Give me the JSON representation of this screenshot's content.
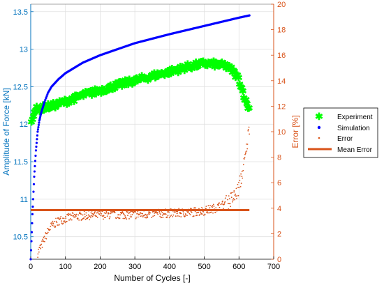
{
  "colors": {
    "left_axis": "#0072BD",
    "right_axis": "#D95319",
    "experiment": "#00FF00",
    "simulation": "#0000FF",
    "error": "#D95319",
    "mean_error": "#D95319",
    "grid": "#E0E0E0"
  },
  "chart_data": {
    "type": "scatter",
    "xlabel": "Number of Cycles [-]",
    "ylabel_left": "Amplitude of Force [kN]",
    "ylabel_right": "Error [%]",
    "xlim": [
      0,
      700
    ],
    "ylim_left": [
      10.2,
      13.6
    ],
    "ylim_right": [
      0,
      20
    ],
    "x_ticks": [
      "0",
      "100",
      "200",
      "300",
      "400",
      "500",
      "600",
      "700"
    ],
    "y_left_ticks": [
      "10.5",
      "11",
      "11.5",
      "12",
      "12.5",
      "13",
      "13.5"
    ],
    "y_right_ticks": [
      "0",
      "2",
      "4",
      "6",
      "8",
      "10",
      "12",
      "14",
      "16",
      "18",
      "20"
    ],
    "grid": true,
    "legend_position": "right",
    "legend": [
      "Experiment",
      "Simulation",
      "Error",
      "Mean Error"
    ],
    "series": [
      {
        "name": "Experiment",
        "axis": "left",
        "marker": "asterisk",
        "x": [
          0,
          10,
          20,
          30,
          40,
          60,
          80,
          100,
          130,
          160,
          200,
          250,
          300,
          350,
          400,
          450,
          480,
          500,
          530,
          560,
          580,
          600,
          610,
          620,
          630
        ],
        "y": [
          12.0,
          12.18,
          12.2,
          12.21,
          12.22,
          12.24,
          12.27,
          12.3,
          12.35,
          12.4,
          12.45,
          12.52,
          12.58,
          12.64,
          12.7,
          12.76,
          12.79,
          12.81,
          12.8,
          12.78,
          12.72,
          12.6,
          12.45,
          12.3,
          12.2
        ]
      },
      {
        "name": "Simulation",
        "axis": "left",
        "marker": "dot",
        "x": [
          0,
          5,
          10,
          15,
          20,
          25,
          30,
          40,
          50,
          60,
          80,
          100,
          150,
          200,
          250,
          300,
          400,
          500,
          600,
          630
        ],
        "y": [
          10.2,
          10.8,
          11.3,
          11.65,
          11.9,
          12.05,
          12.15,
          12.3,
          12.42,
          12.5,
          12.6,
          12.68,
          12.82,
          12.92,
          13.0,
          13.08,
          13.2,
          13.31,
          13.42,
          13.45
        ]
      },
      {
        "name": "Error",
        "axis": "right",
        "marker": "dot",
        "x": [
          20,
          30,
          40,
          50,
          60,
          80,
          100,
          120,
          150,
          200,
          250,
          300,
          350,
          400,
          450,
          500,
          530,
          550,
          570,
          590,
          600,
          610,
          620,
          630
        ],
        "y": [
          0.5,
          1.0,
          1.6,
          2.2,
          2.6,
          3.0,
          3.2,
          3.3,
          3.4,
          3.5,
          3.5,
          3.5,
          3.55,
          3.6,
          3.65,
          3.8,
          4.0,
          4.2,
          4.5,
          5.0,
          5.6,
          6.8,
          8.3,
          10.5
        ]
      },
      {
        "name": "Mean Error",
        "axis": "right",
        "marker": "line",
        "x": [
          0,
          630
        ],
        "y": [
          3.85,
          3.85
        ]
      }
    ]
  }
}
